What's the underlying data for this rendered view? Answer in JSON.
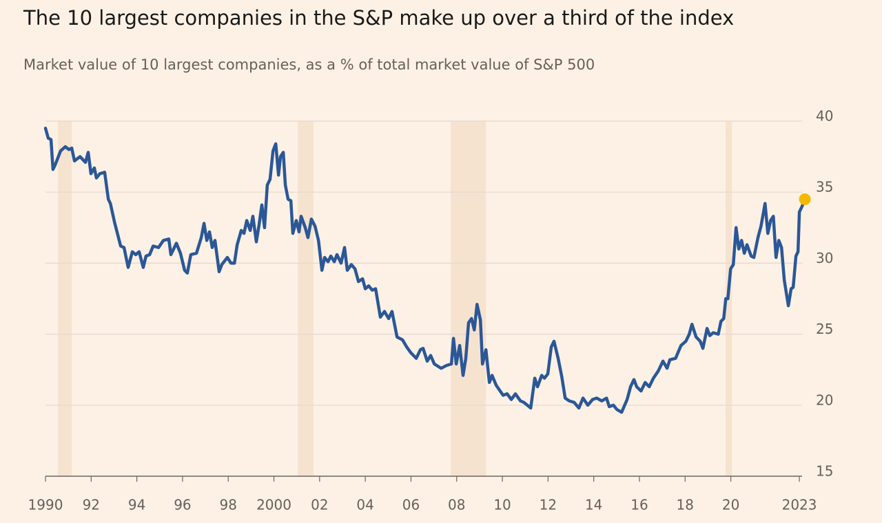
{
  "chart_data": {
    "type": "line",
    "title": "The 10 largest companies in the S&P make up over a third of the index",
    "subtitle": "Market value of 10 largest companies, as a % of total market value of S&P 500",
    "x": [
      1990.0,
      1990.12,
      1990.24,
      1990.33,
      1990.42,
      1990.66,
      1990.87,
      1991.03,
      1991.15,
      1991.27,
      1991.51,
      1991.75,
      1991.87,
      1991.99,
      1992.14,
      1992.23,
      1992.38,
      1992.59,
      1992.75,
      1992.84,
      1993.02,
      1993.29,
      1993.44,
      1993.62,
      1993.8,
      1993.95,
      1994.1,
      1994.28,
      1994.4,
      1994.56,
      1994.71,
      1994.95,
      1995.16,
      1995.4,
      1995.49,
      1995.73,
      1995.91,
      1996.09,
      1996.21,
      1996.36,
      1996.61,
      1996.82,
      1996.94,
      1997.06,
      1997.18,
      1997.3,
      1997.42,
      1997.6,
      1997.72,
      1997.96,
      1998.12,
      1998.27,
      1998.39,
      1998.57,
      1998.69,
      1998.81,
      1998.96,
      1999.08,
      1999.23,
      1999.35,
      1999.47,
      1999.59,
      1999.71,
      1999.83,
      1999.96,
      2000.08,
      2000.2,
      2000.29,
      2000.41,
      2000.5,
      2000.62,
      2000.74,
      2000.83,
      2000.98,
      2001.1,
      2001.19,
      2001.37,
      2001.49,
      2001.64,
      2001.8,
      2001.95,
      2002.1,
      2002.22,
      2002.37,
      2002.49,
      2002.64,
      2002.76,
      2002.94,
      2003.09,
      2003.21,
      2003.39,
      2003.55,
      2003.7,
      2003.88,
      2004.0,
      2004.15,
      2004.3,
      2004.45,
      2004.66,
      2004.84,
      2005.02,
      2005.17,
      2005.39,
      2005.63,
      2005.81,
      2005.99,
      2006.23,
      2006.41,
      2006.53,
      2006.71,
      2006.86,
      2007.02,
      2007.32,
      2007.56,
      2007.77,
      2007.86,
      2007.98,
      2008.13,
      2008.28,
      2008.4,
      2008.52,
      2008.65,
      2008.77,
      2008.89,
      2009.04,
      2009.13,
      2009.28,
      2009.43,
      2009.55,
      2009.73,
      2010.03,
      2010.21,
      2010.39,
      2010.57,
      2010.79,
      2010.94,
      2011.09,
      2011.24,
      2011.42,
      2011.54,
      2011.72,
      2011.84,
      2011.99,
      2012.14,
      2012.26,
      2012.44,
      2012.6,
      2012.75,
      2012.93,
      2013.14,
      2013.35,
      2013.53,
      2013.74,
      2013.95,
      2014.13,
      2014.35,
      2014.56,
      2014.68,
      2014.86,
      2015.01,
      2015.22,
      2015.46,
      2015.61,
      2015.76,
      2015.88,
      2016.07,
      2016.25,
      2016.43,
      2016.61,
      2016.82,
      2017.03,
      2017.21,
      2017.33,
      2017.58,
      2017.82,
      2018.03,
      2018.18,
      2018.3,
      2018.48,
      2018.66,
      2018.78,
      2018.96,
      2019.08,
      2019.23,
      2019.45,
      2019.57,
      2019.69,
      2019.78,
      2019.87,
      2019.99,
      2020.11,
      2020.23,
      2020.35,
      2020.47,
      2020.59,
      2020.71,
      2020.89,
      2021.01,
      2021.19,
      2021.32,
      2021.5,
      2021.62,
      2021.74,
      2021.86,
      2021.98,
      2022.1,
      2022.22,
      2022.34,
      2022.52,
      2022.64,
      2022.73,
      2022.85,
      2022.94,
      2023.0,
      2023.12,
      2023.24
    ],
    "values": [
      39.5,
      38.8,
      38.7,
      36.6,
      36.9,
      37.9,
      38.2,
      38.0,
      38.1,
      37.2,
      37.5,
      37.1,
      37.8,
      36.3,
      36.7,
      36.0,
      36.3,
      36.4,
      34.5,
      34.2,
      32.9,
      31.2,
      31.1,
      29.7,
      30.8,
      30.6,
      30.8,
      29.7,
      30.5,
      30.6,
      31.2,
      31.1,
      31.6,
      31.7,
      30.6,
      31.4,
      30.7,
      29.5,
      29.3,
      30.6,
      30.7,
      31.8,
      32.8,
      31.6,
      32.2,
      31.1,
      31.6,
      29.4,
      29.9,
      30.4,
      30.0,
      30.0,
      31.3,
      32.3,
      32.1,
      33.0,
      32.3,
      33.3,
      31.5,
      32.7,
      34.1,
      32.5,
      35.5,
      35.9,
      37.9,
      38.4,
      36.2,
      37.5,
      37.8,
      35.5,
      34.5,
      34.4,
      32.1,
      33.0,
      32.2,
      33.3,
      32.5,
      31.8,
      33.1,
      32.6,
      31.6,
      29.5,
      30.4,
      30.1,
      30.5,
      30.1,
      30.6,
      30.0,
      31.1,
      29.5,
      29.9,
      29.6,
      28.7,
      28.9,
      28.2,
      28.4,
      28.1,
      28.2,
      26.2,
      26.6,
      26.1,
      26.6,
      24.8,
      24.6,
      24.1,
      23.7,
      23.3,
      23.9,
      24.0,
      23.1,
      23.5,
      22.9,
      22.6,
      22.8,
      22.9,
      24.7,
      22.9,
      24.2,
      22.1,
      23.3,
      25.8,
      26.1,
      25.3,
      27.1,
      26.0,
      22.9,
      23.9,
      21.6,
      22.1,
      21.4,
      20.7,
      20.8,
      20.4,
      20.8,
      20.3,
      20.2,
      20.0,
      19.8,
      21.9,
      21.3,
      22.1,
      21.9,
      22.2,
      24.1,
      24.5,
      23.3,
      22.0,
      20.5,
      20.3,
      20.2,
      19.8,
      20.5,
      20.0,
      20.4,
      20.5,
      20.3,
      20.5,
      19.9,
      20.0,
      19.7,
      19.5,
      20.4,
      21.3,
      21.8,
      21.3,
      21.0,
      21.6,
      21.3,
      21.9,
      22.4,
      23.1,
      22.6,
      23.2,
      23.3,
      24.2,
      24.5,
      25.0,
      25.7,
      24.8,
      24.5,
      24.0,
      25.4,
      24.9,
      25.1,
      25.0,
      25.9,
      26.1,
      27.5,
      27.5,
      29.6,
      29.9,
      32.5,
      31.0,
      31.6,
      30.7,
      31.3,
      30.5,
      30.4,
      31.8,
      32.6,
      34.2,
      32.1,
      33.0,
      33.3,
      30.4,
      31.6,
      31.1,
      28.8,
      27.0,
      28.2,
      28.3,
      30.5,
      30.8,
      33.6,
      34.0,
      34.5
    ],
    "color": "#2b5797",
    "highlight_color": "#f5b800",
    "recession_color": "#f6e3cf",
    "recessions": [
      [
        1990.54,
        1991.15
      ],
      [
        2001.04,
        2001.73
      ],
      [
        2007.74,
        2009.28
      ],
      [
        2019.77,
        2020.05
      ]
    ],
    "xlim": [
      1990,
      2023.3
    ],
    "xticks": [
      1990,
      {
        "value": 1992,
        "label": "92"
      },
      {
        "value": 1994,
        "label": "94"
      },
      {
        "value": 1996,
        "label": "96"
      },
      {
        "value": 1998,
        "label": "98"
      },
      2000,
      {
        "value": 2002,
        "label": "02"
      },
      {
        "value": 2004,
        "label": "04"
      },
      {
        "value": 2006,
        "label": "06"
      },
      {
        "value": 2008,
        "label": "08"
      },
      {
        "value": 2010,
        "label": "10"
      },
      {
        "value": 2012,
        "label": "12"
      },
      {
        "value": 2014,
        "label": "14"
      },
      {
        "value": 2016,
        "label": "16"
      },
      {
        "value": 2018,
        "label": "18"
      },
      {
        "value": 2020,
        "label": "20"
      },
      2023
    ],
    "ylim": [
      15,
      40
    ],
    "yticks": [
      15,
      20,
      25,
      30,
      35,
      40
    ],
    "grid": true
  }
}
